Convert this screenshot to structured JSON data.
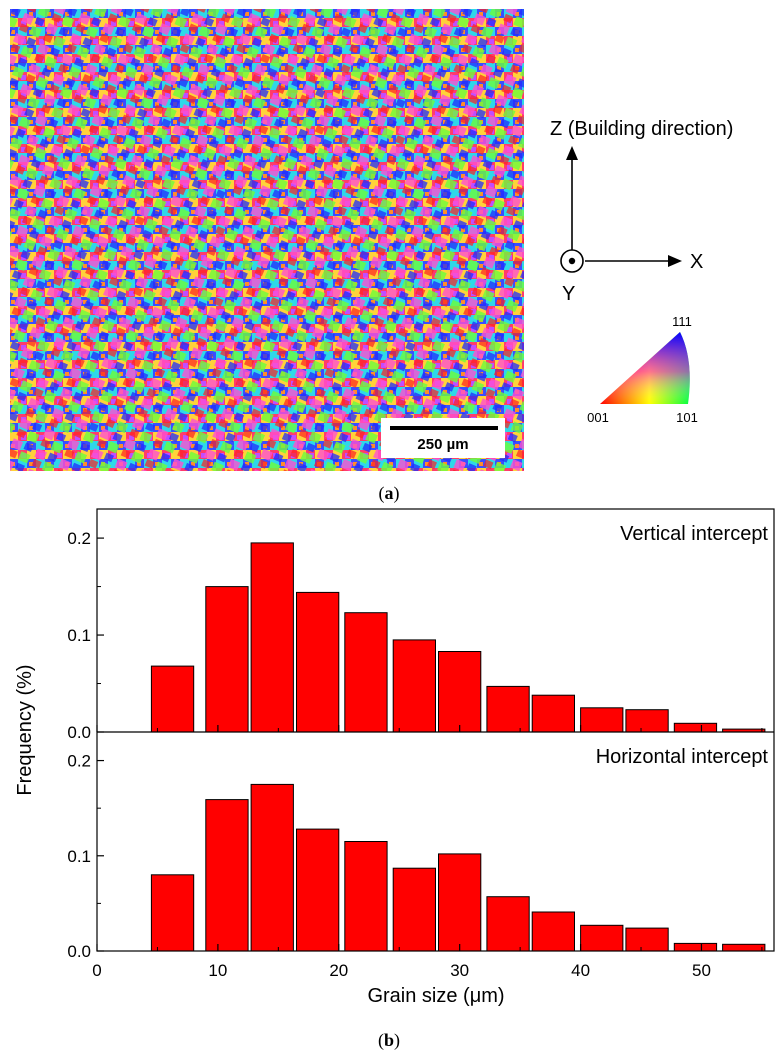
{
  "panel_a": {
    "label": "a",
    "scale_bar": {
      "label": "250 µm"
    },
    "axes": {
      "z_label": "Z (Building direction)",
      "x_label": "X",
      "y_label": "Y"
    },
    "ipf_key": {
      "corner_001": "001",
      "corner_101": "101",
      "corner_111": "111"
    }
  },
  "panel_b": {
    "label": "b",
    "ylabel": "Frequency (%)",
    "xlabel": "Grain size (μm)",
    "xticks": [
      "0",
      "10",
      "20",
      "30",
      "40",
      "50"
    ],
    "yticks": [
      "0.0",
      "0.1",
      "0.2"
    ],
    "bar_color": "#ff0000"
  },
  "chart_data": [
    {
      "type": "bar",
      "title": "Vertical intercept",
      "xlabel": "Grain size (μm)",
      "ylabel": "Frequency (%)",
      "x": [
        6.25,
        10.75,
        14.5,
        18.25,
        22.25,
        26.25,
        30.0,
        34.0,
        37.75,
        41.75,
        45.5,
        49.5,
        53.5
      ],
      "values": [
        0.068,
        0.15,
        0.195,
        0.144,
        0.123,
        0.095,
        0.083,
        0.047,
        0.038,
        0.025,
        0.023,
        0.009,
        0.003
      ],
      "xlim": [
        0,
        56
      ],
      "ylim": [
        0,
        0.23
      ],
      "grid": false,
      "legend": "none"
    },
    {
      "type": "bar",
      "title": "Horizontal intercept",
      "xlabel": "Grain size (μm)",
      "ylabel": "Frequency (%)",
      "x": [
        6.25,
        10.75,
        14.5,
        18.25,
        22.25,
        26.25,
        30.0,
        34.0,
        37.75,
        41.75,
        45.5,
        49.5,
        53.5
      ],
      "values": [
        0.08,
        0.159,
        0.175,
        0.128,
        0.115,
        0.087,
        0.102,
        0.057,
        0.041,
        0.027,
        0.024,
        0.008,
        0.007
      ],
      "xlim": [
        0,
        56
      ],
      "ylim": [
        0,
        0.23
      ],
      "grid": false,
      "legend": "none"
    }
  ]
}
